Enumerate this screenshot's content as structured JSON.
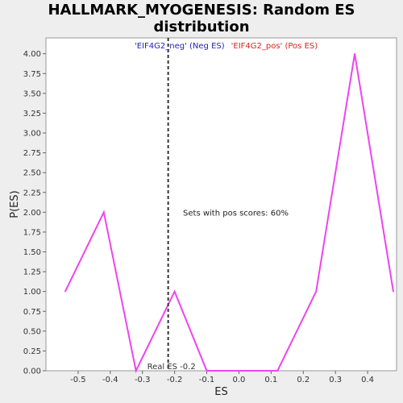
{
  "chart_data": {
    "type": "line",
    "title_line1": "HALLMARK_MYOGENESIS: Random ES",
    "title_line2": "distribution",
    "xlabel": "ES",
    "ylabel": "P(ES)",
    "xlim": [
      -0.6,
      0.49
    ],
    "ylim": [
      0,
      4.2
    ],
    "x_ticks": [
      "-0.5",
      "-0.4",
      "-0.3",
      "-0.2",
      "-0.1",
      "0.0",
      "0.1",
      "0.2",
      "0.3",
      "0.4"
    ],
    "x_tick_values": [
      -0.5,
      -0.4,
      -0.3,
      -0.2,
      -0.1,
      0.0,
      0.1,
      0.2,
      0.3,
      0.4
    ],
    "y_ticks": [
      "0.00",
      "0.25",
      "0.50",
      "0.75",
      "1.00",
      "1.25",
      "1.50",
      "1.75",
      "2.00",
      "2.25",
      "2.50",
      "2.75",
      "3.00",
      "3.25",
      "3.50",
      "3.75",
      "4.00"
    ],
    "y_tick_values": [
      0,
      0.25,
      0.5,
      0.75,
      1.0,
      1.25,
      1.5,
      1.75,
      2.0,
      2.25,
      2.5,
      2.75,
      3.0,
      3.25,
      3.5,
      3.75,
      4.0
    ],
    "series": [
      {
        "color": "#ee44ee",
        "x": [
          -0.54,
          -0.42,
          -0.32,
          -0.2,
          -0.1,
          0.0,
          0.12,
          0.24,
          0.36,
          0.48
        ],
        "y": [
          1.0,
          2.0,
          0.0,
          1.0,
          0.0,
          0.0,
          0.0,
          1.0,
          4.0,
          1.0
        ]
      }
    ],
    "real_es": -0.22,
    "real_es_label": "Real ES -0.2",
    "neg_label": "'EIF4G2_neg' (Neg ES)",
    "pos_label": "'EIF4G2_pos' (Pos ES)",
    "neg_color": "#2222bb",
    "pos_color": "#dd2222",
    "annotation": "Sets with pos scores: 60%",
    "grid": false
  }
}
